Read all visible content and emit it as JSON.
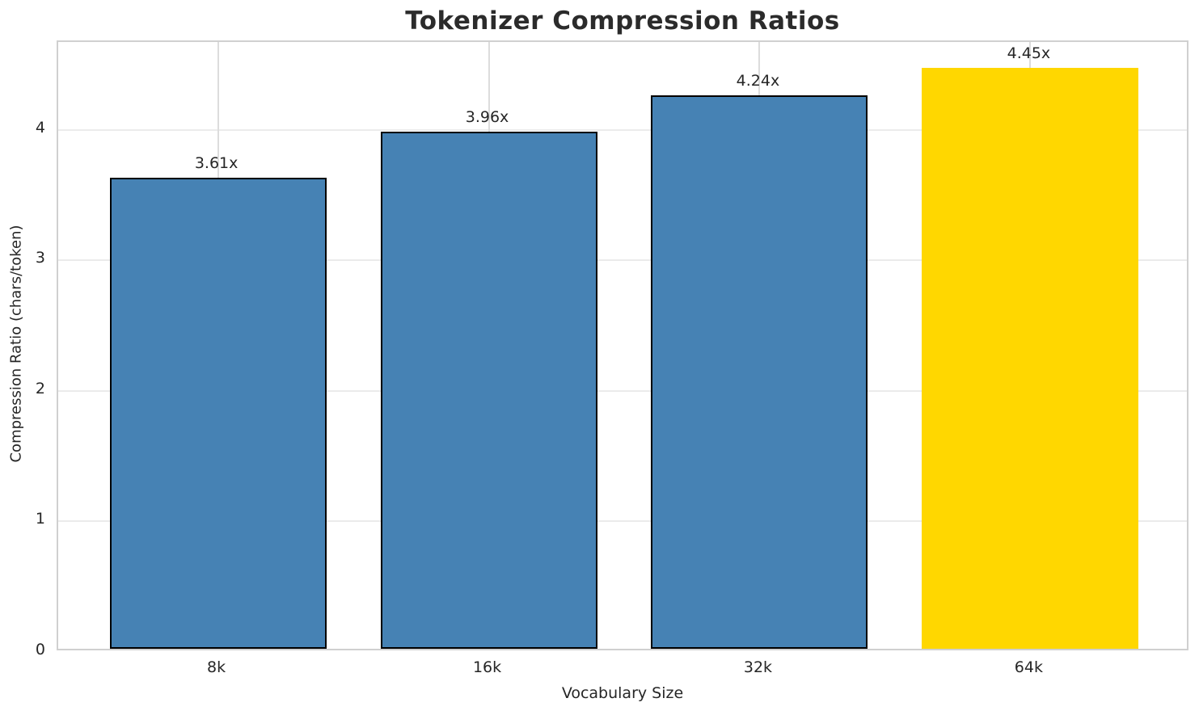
{
  "title": "Tokenizer Compression Ratios",
  "chart_data": {
    "type": "bar",
    "title": "Tokenizer Compression Ratios",
    "xlabel": "Vocabulary Size",
    "ylabel": "Compression Ratio (chars/token)",
    "categories": [
      "8k",
      "16k",
      "32k",
      "64k"
    ],
    "values": [
      3.61,
      3.96,
      4.24,
      4.45
    ],
    "bar_labels": [
      "3.61x",
      "3.96x",
      "4.24x",
      "4.45x"
    ],
    "yticks": [
      0,
      1,
      2,
      3,
      4
    ],
    "ylim": [
      0,
      4.6725
    ],
    "grid": true,
    "legend_position": "none",
    "bar_colors": [
      "#4682B4",
      "#4682B4",
      "#4682B4",
      "#FFD700"
    ],
    "bar_edge_colors": [
      "#000000",
      "#000000",
      "#000000",
      "none"
    ],
    "base_color": "#4682B4",
    "highlight_color": "#FFD700"
  },
  "colors": {
    "text": "#262626",
    "title_text": "#2b2b2b",
    "grid_horizontal": "#ebebeb",
    "grid_vertical": "#dcdcdc",
    "spine": "#d0d0d0",
    "background": "#ffffff"
  }
}
